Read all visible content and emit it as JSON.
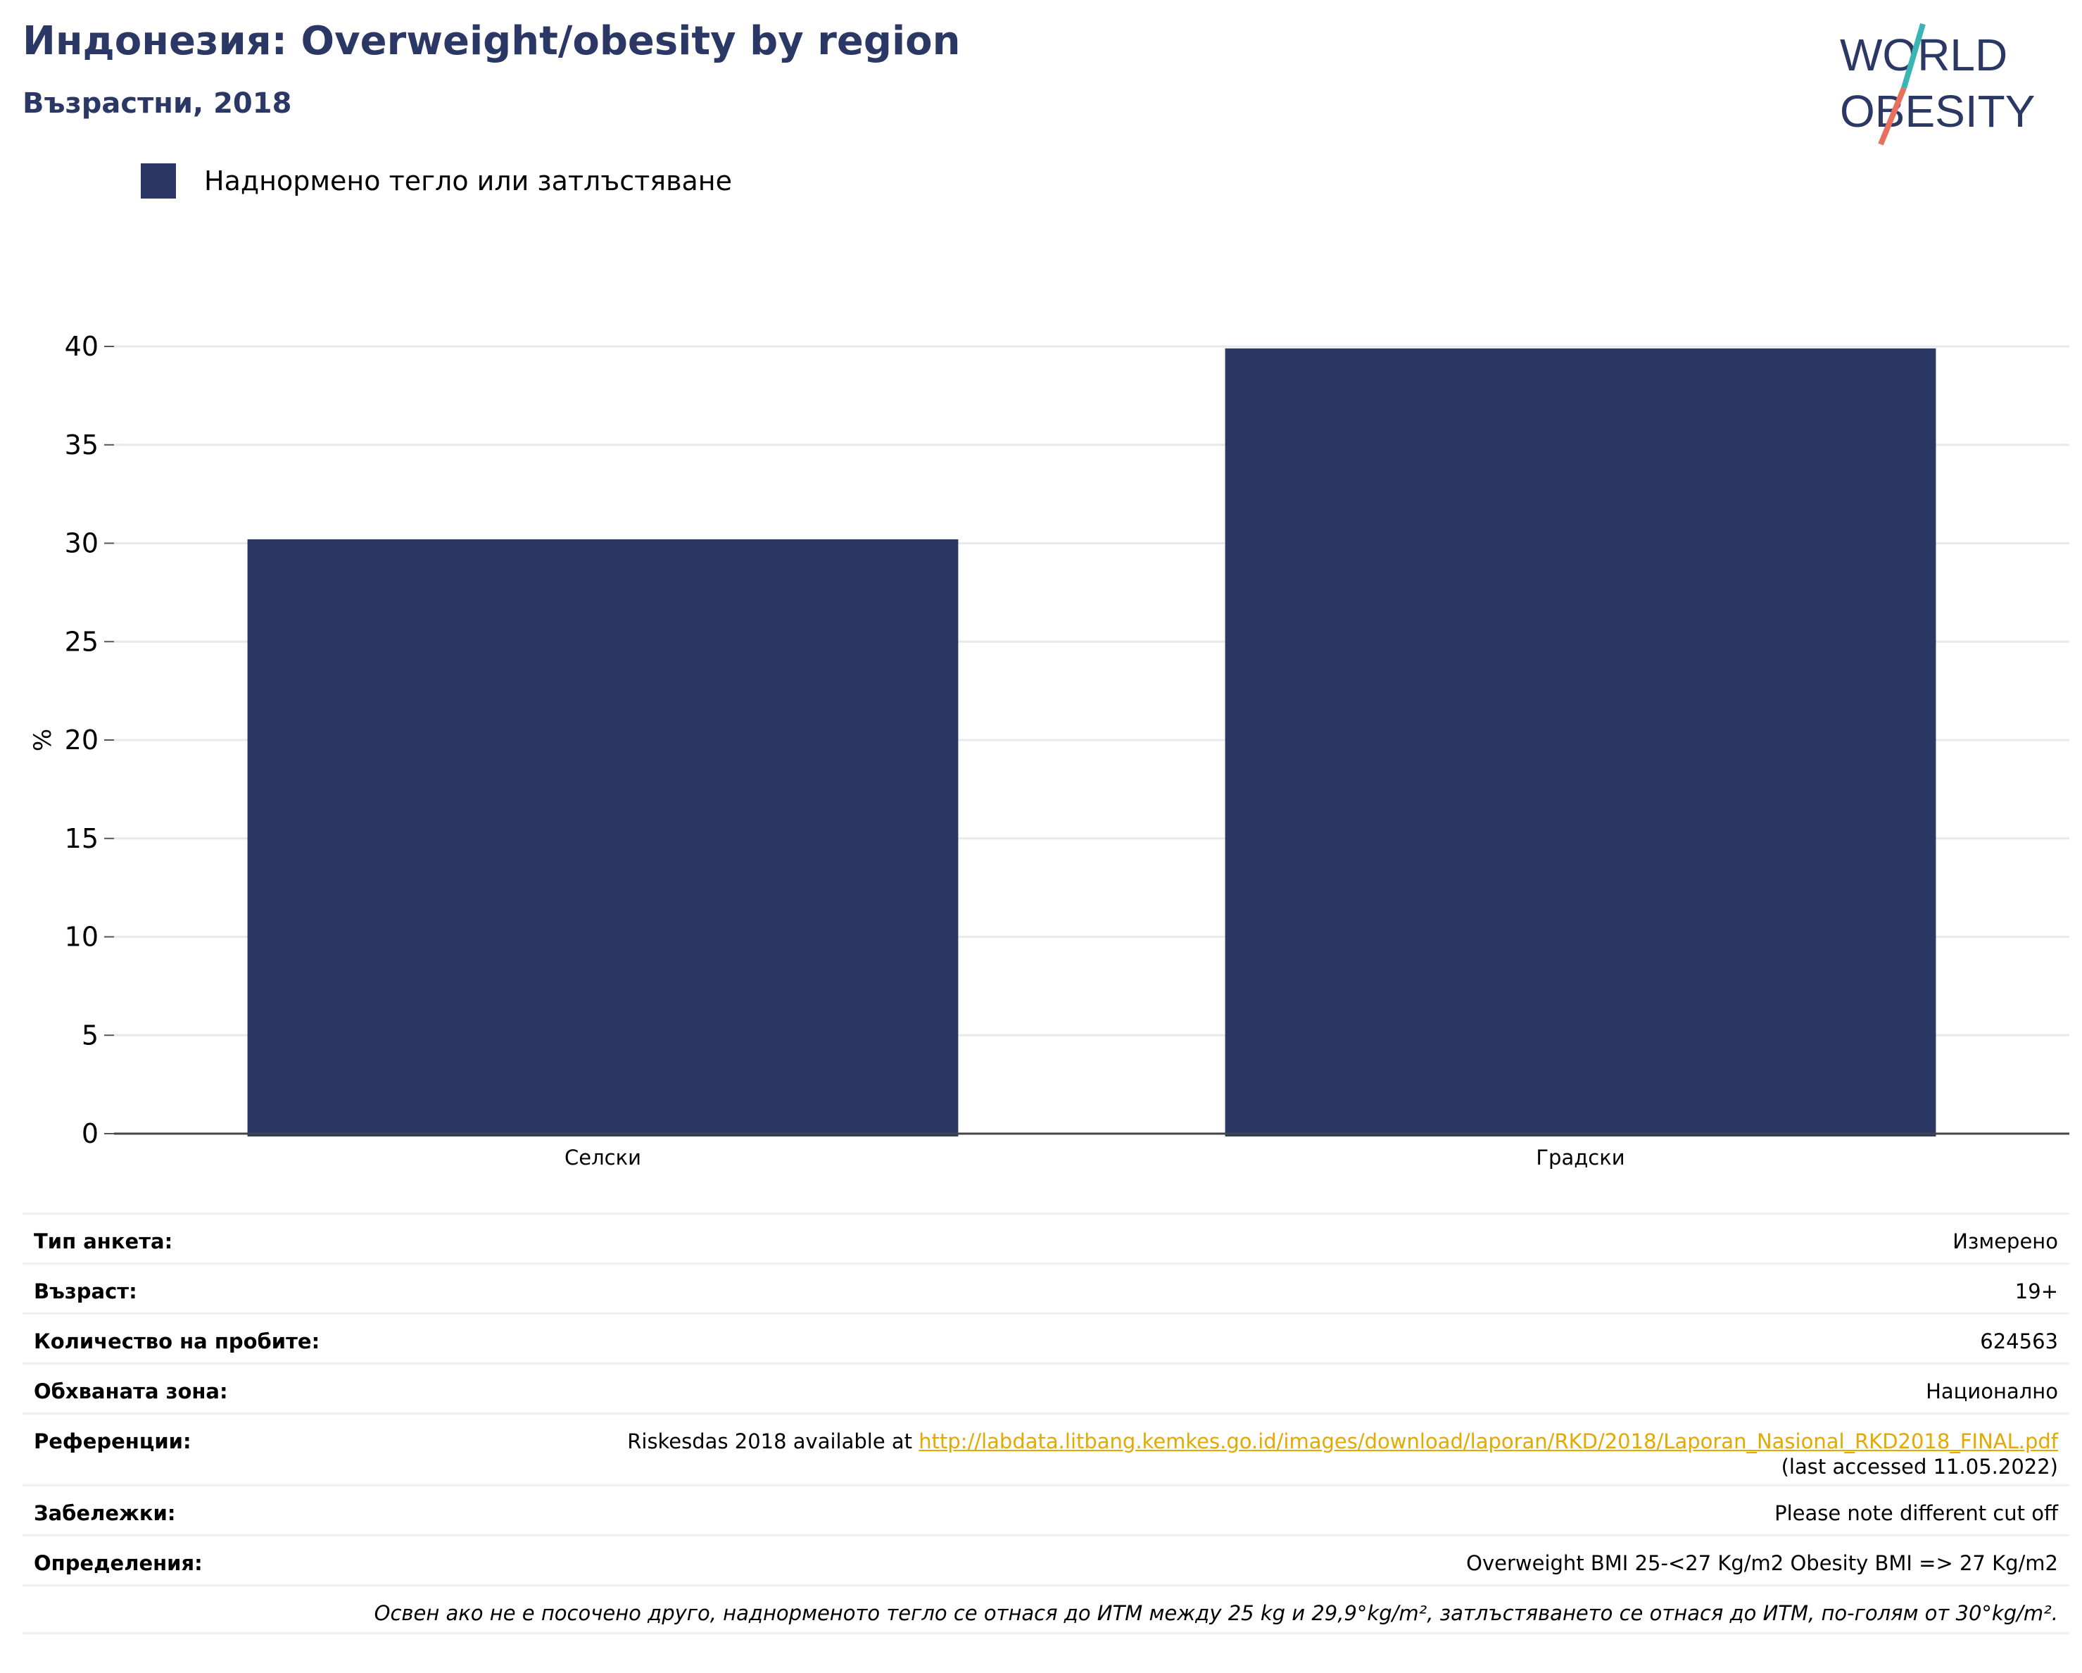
{
  "header": {
    "title": "Индонезия: Overweight/obesity by region",
    "subtitle": "Възрастни, 2018"
  },
  "logo": {
    "line1": "WORLD",
    "line2": "OBESITY"
  },
  "colors": {
    "bar": "#2b3764",
    "title": "#2b3764",
    "link": "#e3a900",
    "grid": "#e6e9ee"
  },
  "chart_data": {
    "type": "bar",
    "categories": [
      "Селски",
      "Градски"
    ],
    "series": [
      {
        "name": "Наднормено тегло или затлъстяване",
        "values": [
          30.2,
          39.9
        ]
      }
    ],
    "ylabel": "%",
    "ylim": [
      0,
      40
    ],
    "yticks": [
      0,
      5,
      10,
      15,
      20,
      25,
      30,
      35,
      40
    ],
    "grid": true,
    "legend": "top-left"
  },
  "info": {
    "survey_type_label": "Тип анкета:",
    "survey_type_value": "Измерено",
    "age_label": "Възраст:",
    "age_value": "19+",
    "sample_label": "Количество на пробите:",
    "sample_value": "624563",
    "area_label": "Обхваната зона:",
    "area_value": "Национално",
    "references_label": "Референции:",
    "references_prefix": "Riskesdas 2018 available at ",
    "references_link": "http://labdata.litbang.kemkes.go.id/images/download/laporan/RKD/2018/Laporan_Nasional_RKD2018_FINAL.pdf",
    "references_suffix": "(last accessed 11.05.2022)",
    "notes_label": "Забележки:",
    "notes_value": "Please note different cut off",
    "definitions_label": "Определения:",
    "definitions_value": "Overweight BMI 25-<27 Kg/m2 Obesity BMI => 27 Kg/m2",
    "footnote": "Освен ако не е посочено друго, наднорменото тегло се отнася до ИТМ между 25 kg и 29,9°kg/m², затлъстяването се отнася до ИТМ, по-голям от 30°kg/m²."
  }
}
